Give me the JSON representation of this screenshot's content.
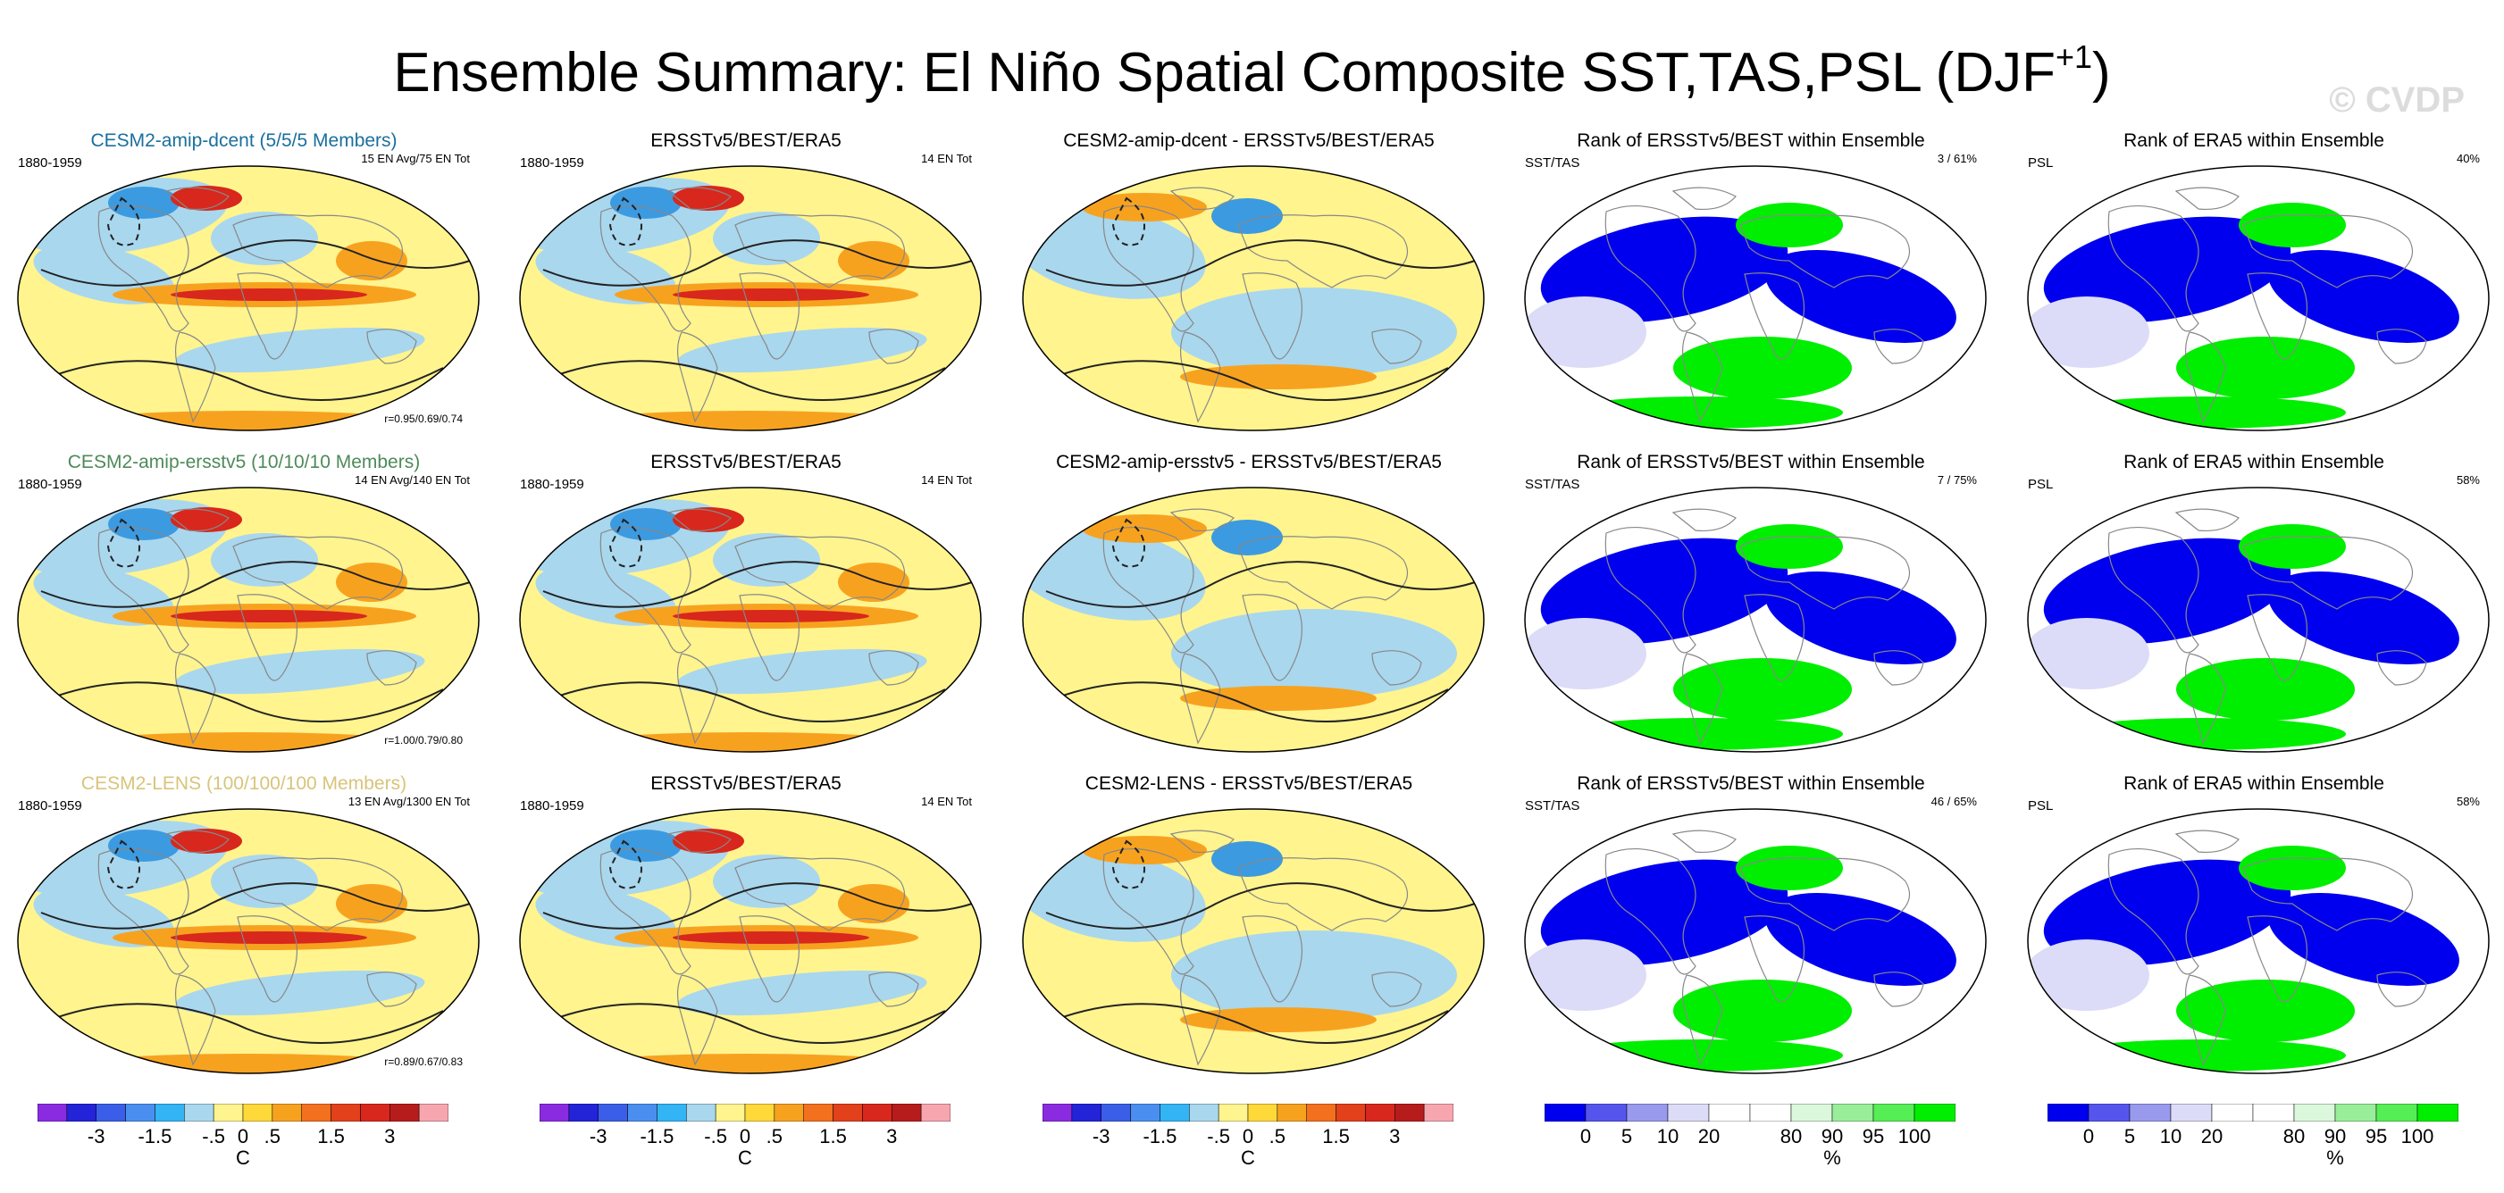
{
  "title": {
    "main": "Ensemble Summary: El Niño Spatial Composite SST,TAS,PSL (DJF",
    "superscript": "+1",
    "close": ")"
  },
  "watermark": "© CVDP",
  "colors": {
    "ocean_cool": "#a9d7ee",
    "land_neutral": "#fff48e",
    "warm_orange": "#f7a21f",
    "hot_red": "#d8271c",
    "cool_blue": "#3c9ae0",
    "rank_blue": "#0000ee",
    "rank_green": "#00ee00",
    "rank_lightblue": "#dcdcf8"
  },
  "rows": [
    {
      "panels": [
        {
          "title": "CESM2-amip-dcent (5/5/5 Members)",
          "title_color": "#1a6f9e",
          "left": "1880-1959",
          "right": "15 EN Avg/75 EN Tot",
          "corr": "r=0.95/0.69/0.74",
          "style": "anom"
        },
        {
          "title": "ERSSTv5/BEST/ERA5",
          "title_color": "#000000",
          "left": "1880-1959",
          "right": "14 EN Tot",
          "corr": "",
          "style": "anom"
        },
        {
          "title": "CESM2-amip-dcent - ERSSTv5/BEST/ERA5",
          "title_color": "#000000",
          "left": "",
          "right": "",
          "corr": "",
          "style": "diff"
        },
        {
          "title": "Rank of ERSSTv5/BEST within Ensemble",
          "title_color": "#000000",
          "left": "SST/TAS",
          "right": "3 /  61%",
          "corr": "",
          "style": "rank"
        },
        {
          "title": "Rank of ERA5 within Ensemble",
          "title_color": "#000000",
          "left": "PSL",
          "right": "40%",
          "corr": "",
          "style": "rank"
        }
      ]
    },
    {
      "panels": [
        {
          "title": "CESM2-amip-ersstv5 (10/10/10 Members)",
          "title_color": "#4e8a5a",
          "left": "1880-1959",
          "right": "14 EN Avg/140 EN Tot",
          "corr": "r=1.00/0.79/0.80",
          "style": "anom"
        },
        {
          "title": "ERSSTv5/BEST/ERA5",
          "title_color": "#000000",
          "left": "1880-1959",
          "right": "14 EN Tot",
          "corr": "",
          "style": "anom"
        },
        {
          "title": "CESM2-amip-ersstv5 - ERSSTv5/BEST/ERA5",
          "title_color": "#000000",
          "left": "",
          "right": "",
          "corr": "",
          "style": "diff"
        },
        {
          "title": "Rank of ERSSTv5/BEST within Ensemble",
          "title_color": "#000000",
          "left": "SST/TAS",
          "right": "7 /  75%",
          "corr": "",
          "style": "rank"
        },
        {
          "title": "Rank of ERA5 within Ensemble",
          "title_color": "#000000",
          "left": "PSL",
          "right": "58%",
          "corr": "",
          "style": "rank"
        }
      ]
    },
    {
      "panels": [
        {
          "title": "CESM2-LENS (100/100/100 Members)",
          "title_color": "#d8c47a",
          "left": "1880-1959",
          "right": "13 EN Avg/1300 EN Tot",
          "corr": "r=0.89/0.67/0.83",
          "style": "anom"
        },
        {
          "title": "ERSSTv5/BEST/ERA5",
          "title_color": "#000000",
          "left": "1880-1959",
          "right": "14 EN Tot",
          "corr": "",
          "style": "anom"
        },
        {
          "title": "CESM2-LENS - ERSSTv5/BEST/ERA5",
          "title_color": "#000000",
          "left": "",
          "right": "",
          "corr": "",
          "style": "diff"
        },
        {
          "title": "Rank of ERSSTv5/BEST within Ensemble",
          "title_color": "#000000",
          "left": "SST/TAS",
          "right": "46 /  65%",
          "corr": "",
          "style": "rank"
        },
        {
          "title": "Rank of ERA5 within Ensemble",
          "title_color": "#000000",
          "left": "PSL",
          "right": "58%",
          "corr": "",
          "style": "rank"
        }
      ]
    }
  ],
  "colorbars": [
    {
      "colors": [
        "#8a2be2",
        "#2323d8",
        "#3b5ee8",
        "#4a8ff0",
        "#32b4f5",
        "#a9d7ee",
        "#fff48e",
        "#ffd83a",
        "#f7a21f",
        "#f3701e",
        "#e3401c",
        "#d8271c",
        "#b71c1c",
        "#f7a6b0"
      ],
      "ticks": [
        "-3",
        "-1.5",
        "-.5",
        "0",
        ".5",
        "1.5",
        "3"
      ],
      "tick_index": [
        2,
        4,
        6,
        7,
        8,
        10,
        12
      ],
      "unit": "C"
    },
    {
      "colors": [
        "#8a2be2",
        "#2323d8",
        "#3b5ee8",
        "#4a8ff0",
        "#32b4f5",
        "#a9d7ee",
        "#fff48e",
        "#ffd83a",
        "#f7a21f",
        "#f3701e",
        "#e3401c",
        "#d8271c",
        "#b71c1c",
        "#f7a6b0"
      ],
      "ticks": [
        "-3",
        "-1.5",
        "-.5",
        "0",
        ".5",
        "1.5",
        "3"
      ],
      "tick_index": [
        2,
        4,
        6,
        7,
        8,
        10,
        12
      ],
      "unit": "C"
    },
    {
      "colors": [
        "#8a2be2",
        "#2323d8",
        "#3b5ee8",
        "#4a8ff0",
        "#32b4f5",
        "#a9d7ee",
        "#fff48e",
        "#ffd83a",
        "#f7a21f",
        "#f3701e",
        "#e3401c",
        "#d8271c",
        "#b71c1c",
        "#f7a6b0"
      ],
      "ticks": [
        "-3",
        "-1.5",
        "-.5",
        "0",
        ".5",
        "1.5",
        "3"
      ],
      "tick_index": [
        2,
        4,
        6,
        7,
        8,
        10,
        12
      ],
      "unit": "C"
    },
    {
      "colors": [
        "#0000ee",
        "#5555ee",
        "#9999ee",
        "#dcdcf8",
        "#ffffff",
        "#ffffff",
        "#dcf8dc",
        "#99ee99",
        "#55ee55",
        "#00ee00"
      ],
      "ticks": [
        "0",
        "5",
        "10",
        "20",
        "80",
        "90",
        "95",
        "100"
      ],
      "tick_index": [
        1,
        2,
        3,
        4,
        6,
        7,
        8,
        9
      ],
      "unit": "%"
    },
    {
      "colors": [
        "#0000ee",
        "#5555ee",
        "#9999ee",
        "#dcdcf8",
        "#ffffff",
        "#ffffff",
        "#dcf8dc",
        "#99ee99",
        "#55ee55",
        "#00ee00"
      ],
      "ticks": [
        "0",
        "5",
        "10",
        "20",
        "80",
        "90",
        "95",
        "100"
      ],
      "tick_index": [
        1,
        2,
        3,
        4,
        6,
        7,
        8,
        9
      ],
      "unit": "%"
    }
  ]
}
